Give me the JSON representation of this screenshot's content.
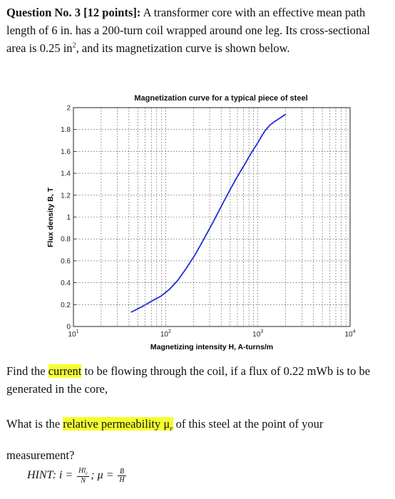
{
  "question": {
    "heading": "Question No. 3 [12 points]:",
    "text_part1": " A transformer core with an effective mean path length of 6 in. has a 200-turn coil wrapped around one leg. Its cross-sectional area is 0.25 in",
    "area_exp": "2",
    "text_part2": ", and its magnetization curve is shown below."
  },
  "chart_data": {
    "type": "line",
    "title": "Magnetization curve for a typical piece of steel",
    "xlabel": "Magnetizing intensity H, A-turns/m",
    "ylabel": "Flux density B, T",
    "x_scale": "log",
    "xlim": [
      10,
      10000
    ],
    "ylim": [
      0,
      2
    ],
    "grid": true,
    "x_tick_labels": [
      {
        "base": "10",
        "exp": "1",
        "value": 10
      },
      {
        "base": "10",
        "exp": "2",
        "value": 100
      },
      {
        "base": "10",
        "exp": "3",
        "value": 1000
      },
      {
        "base": "10",
        "exp": "4",
        "value": 10000
      }
    ],
    "y_ticks": [
      "0",
      "0.2",
      "0.4",
      "0.6",
      "0.8",
      "1",
      "1.2",
      "1.4",
      "1.6",
      "1.8",
      "2"
    ],
    "line_color": "#1f2fd6",
    "series": [
      {
        "x": [
          42,
          55,
          70,
          90,
          110,
          135,
          170,
          210,
          260,
          330,
          420,
          500,
          580,
          650,
          730,
          800,
          900,
          1000,
          1100,
          1200,
          1350,
          1500,
          1700,
          2000
        ],
        "y": [
          0.13,
          0.18,
          0.23,
          0.28,
          0.34,
          0.42,
          0.54,
          0.66,
          0.8,
          0.96,
          1.13,
          1.25,
          1.35,
          1.42,
          1.49,
          1.55,
          1.62,
          1.68,
          1.74,
          1.79,
          1.84,
          1.87,
          1.9,
          1.94
        ]
      }
    ]
  },
  "find": {
    "before": "Find the ",
    "highlight": "current",
    "after": " to be flowing through the coil, if a flux of 0.22 mWb is to be generated in the core,"
  },
  "relative": {
    "before": "What is the ",
    "highlight": "relative permeability μ",
    "sub": "r",
    "after": " of this steel at the point of your measurement?"
  },
  "hint": {
    "label": "HINT: i =",
    "frac1_num": "Hl",
    "frac1_num_sub": "c",
    "frac1_den": "N",
    "sep": "; μ =",
    "frac2_num": "B",
    "frac2_den": "H"
  },
  "colors": {
    "highlight": "#f5ff2f",
    "curve": "#1f2fd6"
  }
}
